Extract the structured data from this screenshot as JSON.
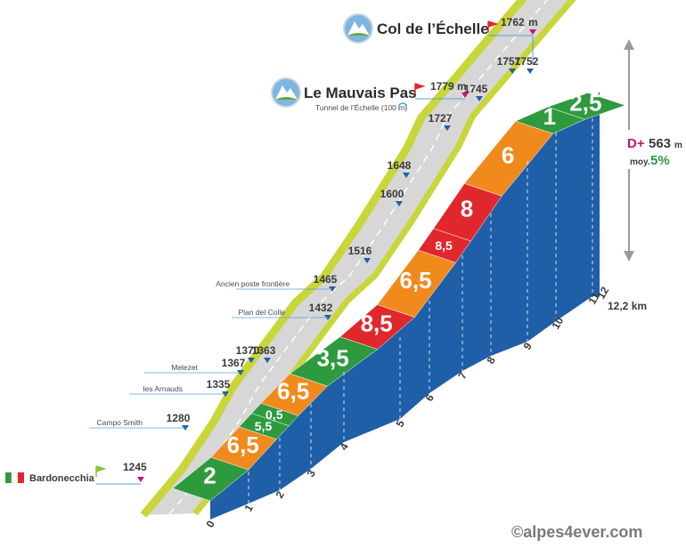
{
  "chart_data": {
    "type": "area",
    "start": {
      "name": "Bardonecchia",
      "altitude": "1245"
    },
    "summit": {
      "name": "Col de l’Échelle",
      "altitude": "1762",
      "unit": "m"
    },
    "pass": {
      "name": "Le Mauvais Pas",
      "altitude": "1779",
      "unit": "m"
    },
    "tunnel_label": "Tunnel de l’Échelle (100 m)",
    "total_distance_label": "12,2 km",
    "gain": {
      "prefix": "D+",
      "value": "563",
      "unit": "m",
      "avg_prefix": "moy.",
      "avg_value": "5%"
    },
    "copyright": "©alpes4ever.com",
    "x_ticks": [
      "0",
      "1",
      "2",
      "3",
      "4",
      "5",
      "6",
      "7",
      "8",
      "9",
      "10",
      "11",
      "12"
    ],
    "waypoints": [
      {
        "km": 0,
        "altitude": "1245",
        "name": "Bardonecchia"
      },
      {
        "km": 1.2,
        "altitude": "1280",
        "name": "Campo Smith"
      },
      {
        "km": 2.0,
        "altitude": "1335",
        "name": "les Arnauds"
      },
      {
        "km": 2.6,
        "altitude": "1367",
        "name": "Melezet"
      },
      {
        "km": 2.8,
        "altitude": "1370",
        "name": ""
      },
      {
        "km": 3.0,
        "altitude": "1363",
        "name": ""
      },
      {
        "km": 4.3,
        "altitude": "1432",
        "name": "Plan del Colle"
      },
      {
        "km": 4.8,
        "altitude": "1465",
        "name": "Ancien poste frontière"
      },
      {
        "km": 5.8,
        "altitude": "1516",
        "name": ""
      },
      {
        "km": 7.3,
        "altitude": "1600",
        "name": ""
      },
      {
        "km": 7.8,
        "altitude": "1648",
        "name": ""
      },
      {
        "km": 8.8,
        "altitude": "1727",
        "name": ""
      },
      {
        "km": 9.6,
        "altitude": "1745",
        "name": ""
      },
      {
        "km": 10.8,
        "altitude": "1757",
        "name": ""
      },
      {
        "km": 11.2,
        "altitude": "1752",
        "name": ""
      }
    ],
    "segments": [
      {
        "label": "2",
        "color": "#2e9a3e"
      },
      {
        "label": "6,5",
        "color": "#f08a1c"
      },
      {
        "label": "5,5",
        "color": "#2e9a3e"
      },
      {
        "label": "0,5",
        "color": "#2e9a3e"
      },
      {
        "label": "6,5",
        "color": "#f08a1c"
      },
      {
        "label": "3,5",
        "color": "#2e9a3e"
      },
      {
        "label": "8,5",
        "color": "#e0282c"
      },
      {
        "label": "6,5",
        "color": "#f08a1c"
      },
      {
        "label": "8,5",
        "color": "#e0282c"
      },
      {
        "label": "8",
        "color": "#e0282c"
      },
      {
        "label": "6",
        "color": "#f08a1c"
      },
      {
        "label": "1",
        "color": "#2e9a3e"
      },
      {
        "label": "2,5",
        "color": "#2e9a3e"
      }
    ]
  }
}
